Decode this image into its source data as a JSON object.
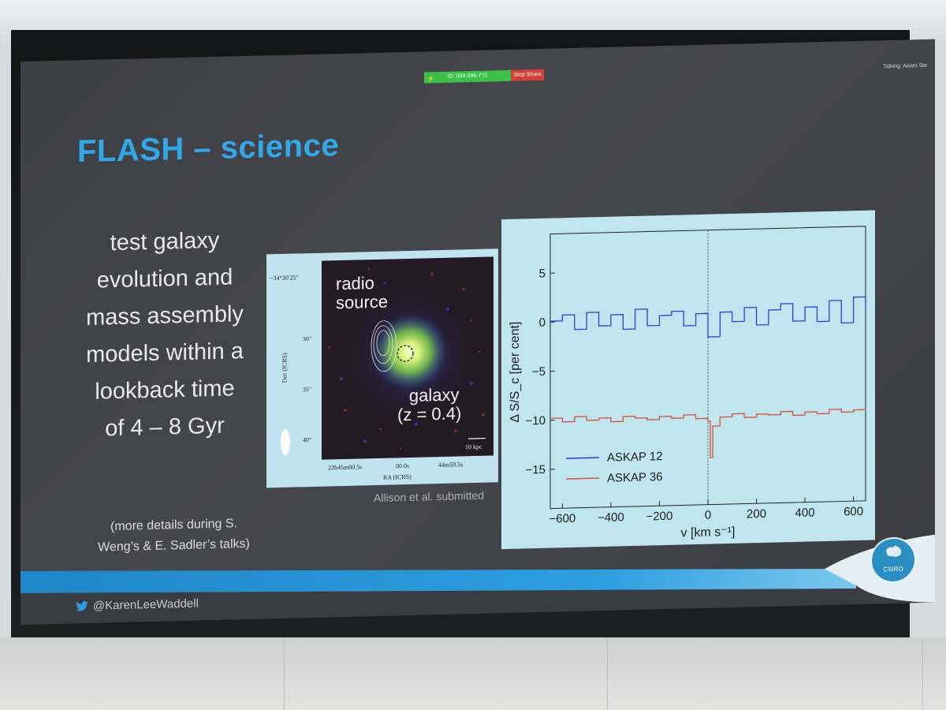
{
  "zoom": {
    "meeting_id": "ID: 994-596-775",
    "stop_share_label": "Stop Share",
    "talking": "Talking: Adam Ste"
  },
  "slide": {
    "title": "FLASH – science",
    "body_lines": [
      "test galaxy",
      "evolution and",
      "mass assembly",
      "models within a",
      "lookback time",
      "of 4 – 8  Gyr"
    ],
    "note_lines": [
      "(more details during S.",
      "Weng’s & E. Sadler’s talks)"
    ],
    "caption": "Allison et al. submitted",
    "twitter_handle": "@KarenLeeWaddell",
    "logo_text": "CSIRO"
  },
  "image": {
    "label_radio": [
      "radio",
      "source"
    ],
    "label_galaxy": [
      "galaxy",
      "(z = 0.4)"
    ],
    "dec_ticks": [
      "−34°30′25″",
      "30″",
      "35″",
      "40″"
    ],
    "dec_label": "Dec (ICRS)",
    "ra_ticks": [
      "22h45m00.5s",
      "00.0s",
      "44m59.5s"
    ],
    "ra_label": "RA (ICRS)",
    "scale_bar": "10 kpc"
  },
  "chart_data": {
    "type": "line",
    "xlabel": "v [km s⁻¹]",
    "ylabel": "Δ S/S_c [per cent]",
    "xlim": [
      -650,
      650
    ],
    "ylim": [
      -19,
      9
    ],
    "x_ticks": [
      -600,
      -400,
      -200,
      0,
      200,
      400,
      600
    ],
    "y_ticks": [
      5,
      0,
      -5,
      -10,
      -15
    ],
    "legend_position": "bottom-left",
    "series": [
      {
        "name": "ASKAP 12",
        "color": "#2b3ed6",
        "x": [
          -650,
          -600,
          -550,
          -500,
          -450,
          -400,
          -350,
          -300,
          -250,
          -200,
          -150,
          -100,
          -50,
          0,
          50,
          100,
          150,
          200,
          250,
          300,
          350,
          400,
          450,
          500,
          550,
          600,
          650
        ],
        "values": [
          0.1,
          0.7,
          -0.8,
          0.9,
          -0.5,
          0.6,
          -0.9,
          1.1,
          -0.6,
          0.4,
          0.8,
          -0.7,
          0.5,
          -1.9,
          0.6,
          -0.4,
          1.0,
          -0.8,
          0.7,
          1.3,
          -0.5,
          0.9,
          -0.6,
          1.5,
          -0.8,
          1.8,
          0.6
        ]
      },
      {
        "name": "ASKAP 36",
        "color": "#d9503a",
        "x": [
          -650,
          -600,
          -550,
          -500,
          -450,
          -400,
          -350,
          -300,
          -250,
          -200,
          -150,
          -100,
          -50,
          0,
          10,
          20,
          50,
          100,
          150,
          200,
          250,
          300,
          350,
          400,
          450,
          500,
          550,
          600,
          650
        ],
        "values": [
          -9.8,
          -10.2,
          -9.7,
          -10.1,
          -9.9,
          -10.3,
          -9.8,
          -10.0,
          -10.2,
          -9.9,
          -10.1,
          -9.8,
          -10.2,
          -10.5,
          -14.2,
          -11.0,
          -10.1,
          -9.8,
          -10.2,
          -9.9,
          -10.0,
          -9.7,
          -10.1,
          -9.8,
          -10.0,
          -9.6,
          -9.9,
          -9.7,
          -9.8
        ]
      }
    ]
  }
}
